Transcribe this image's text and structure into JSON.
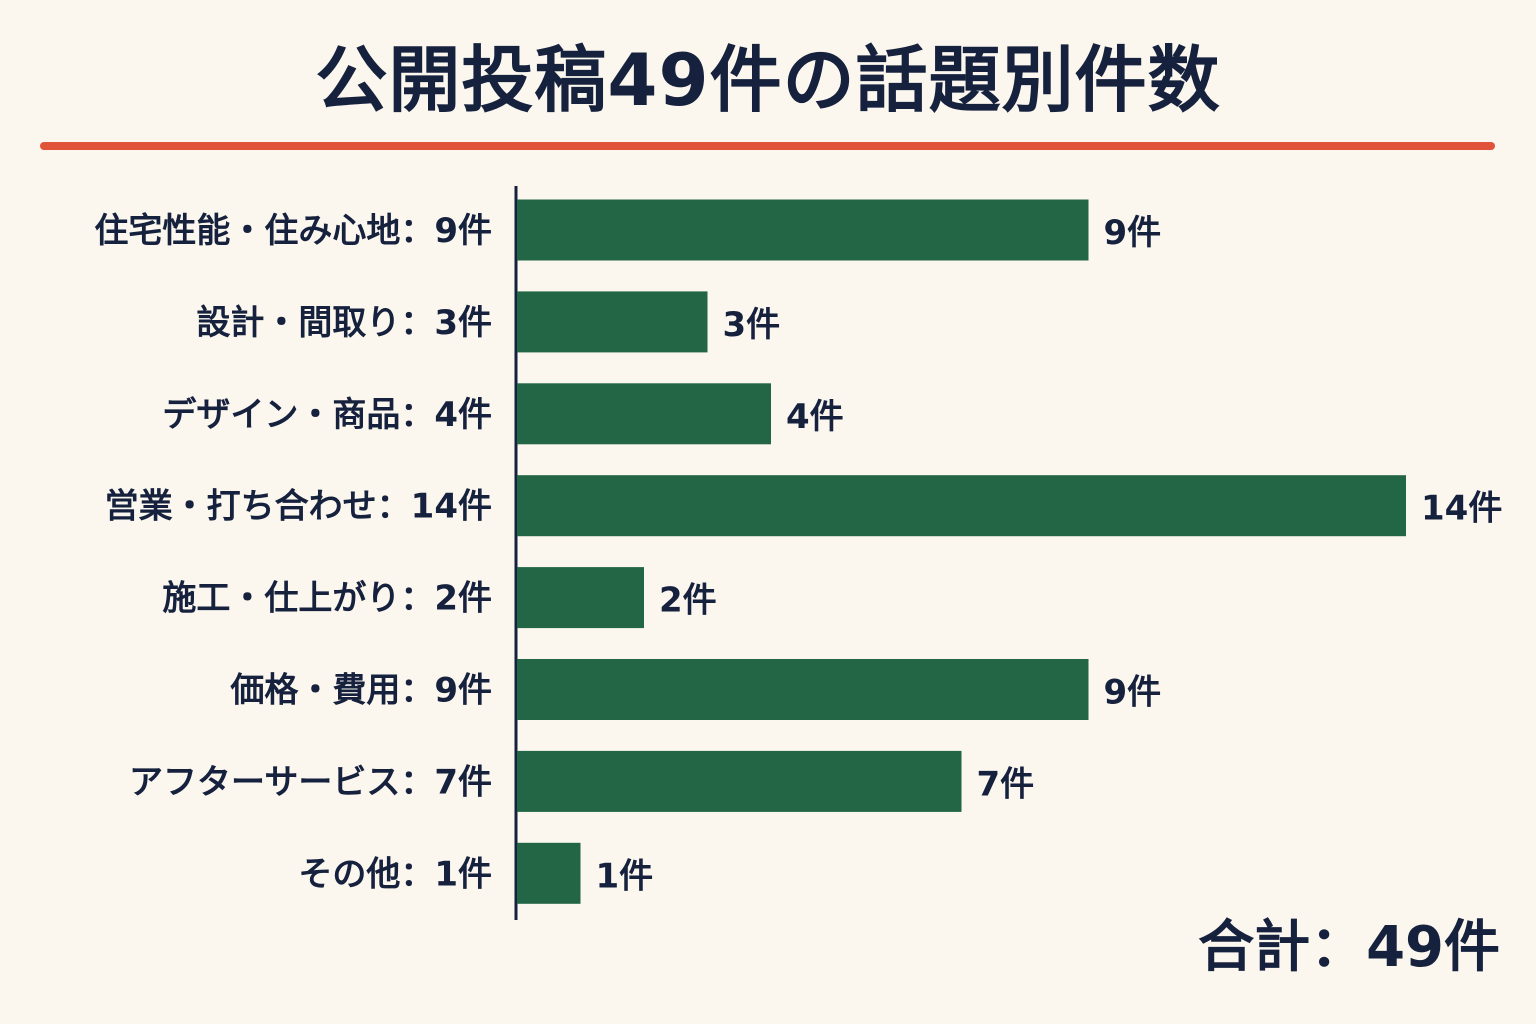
{
  "colors": {
    "background": "#fbf7ee",
    "text": "#16213e",
    "bar": "#236645",
    "accent_line": "#e0533a",
    "axis": "#16213e"
  },
  "total_text": "合計：49件",
  "chart_data": {
    "type": "bar",
    "orientation": "horizontal",
    "title": "公開投稿49件の話題別件数",
    "categories": [
      "住宅性能・住み心地",
      "設計・間取り",
      "デザイン・商品",
      "営業・打ち合わせ",
      "施工・仕上がり",
      "価格・費用",
      "アフターサービス",
      "その他"
    ],
    "category_labels": [
      "住宅性能・住み心地：9件",
      "設計・間取り：3件",
      "デザイン・商品：4件",
      "営業・打ち合わせ：14件",
      "施工・仕上がり：2件",
      "価格・費用：9件",
      "アフターサービス：7件",
      "その他：1件"
    ],
    "values": [
      9,
      3,
      4,
      14,
      2,
      9,
      7,
      1
    ],
    "value_labels": [
      "9件",
      "3件",
      "4件",
      "14件",
      "2件",
      "9件",
      "7件",
      "1件"
    ],
    "xlim": [
      0,
      14
    ],
    "grid": false,
    "legend": "none"
  }
}
